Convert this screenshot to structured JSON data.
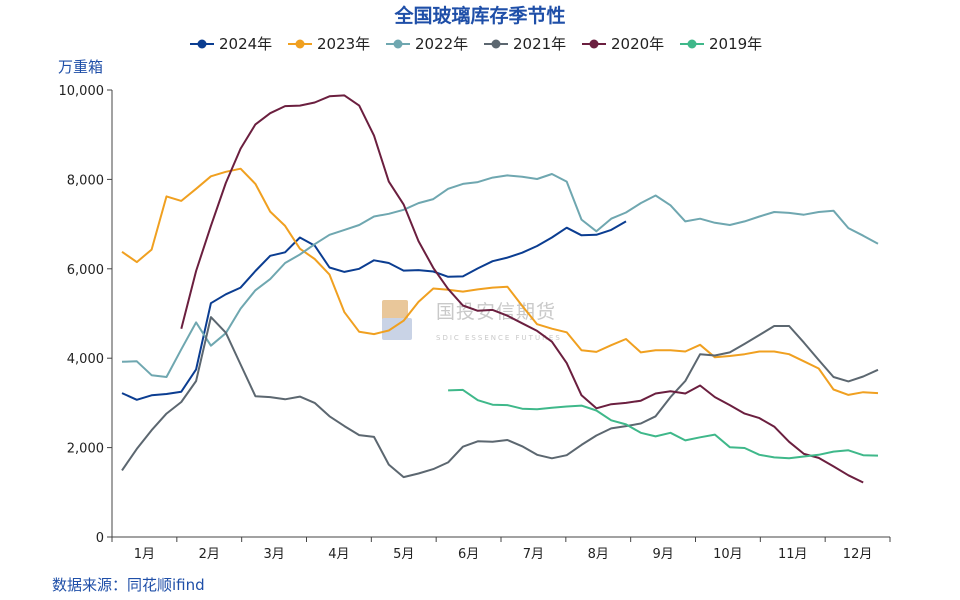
{
  "colors": {
    "title": "#1f4fa8",
    "axis": "#444444",
    "unit": "#1f4fa8",
    "source": "#1f4fa8",
    "watermark": "#c9c9c9",
    "watermark_logo_a": "#e9c79a",
    "watermark_logo_b": "#c9d3e6"
  },
  "watermark": {
    "text": "国投安信期货",
    "sub": "SDIC ESSENCE FUTURES"
  },
  "source_text": "数据来源：同花顺ifind",
  "chart_data": {
    "type": "line",
    "title": "全国玻璃库存季节性",
    "ylabel": "万重箱",
    "xlabel": "",
    "ylim": [
      0,
      10000
    ],
    "yticks": [
      0,
      2000,
      4000,
      6000,
      8000,
      10000
    ],
    "ytick_labels": [
      "0",
      "2,000",
      "4,000",
      "6,000",
      "8,000",
      "10,000"
    ],
    "xlim": [
      0,
      52
    ],
    "months": [
      "1月",
      "2月",
      "3月",
      "4月",
      "5月",
      "6月",
      "7月",
      "8月",
      "9月",
      "10月",
      "11月",
      "12月"
    ],
    "legend_position": "top-center",
    "series": [
      {
        "name": "2024年",
        "color": "#0b3d91",
        "start": 0,
        "values": [
          3220,
          3070,
          3170,
          3200,
          3250,
          3750,
          5230,
          5430,
          5580,
          5950,
          6290,
          6370,
          6700,
          6520,
          6030,
          5930,
          6000,
          6190,
          6130,
          5960,
          5970,
          5940,
          5820,
          5830,
          6010,
          6170,
          6250,
          6360,
          6510,
          6700,
          6920,
          6750,
          6760,
          6870,
          7060
        ]
      },
      {
        "name": "2023年",
        "color": "#f0a020",
        "start": 0,
        "values": [
          6380,
          6150,
          6430,
          7620,
          7520,
          7790,
          8070,
          8170,
          8240,
          7900,
          7280,
          6960,
          6450,
          6220,
          5870,
          5030,
          4590,
          4540,
          4620,
          4840,
          5260,
          5560,
          5530,
          5490,
          5540,
          5580,
          5600,
          5170,
          4760,
          4660,
          4580,
          4180,
          4140,
          4290,
          4430,
          4130,
          4180,
          4180,
          4150,
          4300,
          4020,
          4050,
          4090,
          4150,
          4150,
          4090,
          3930,
          3770,
          3300,
          3180,
          3240,
          3220
        ]
      },
      {
        "name": "2022年",
        "color": "#6fa7b0",
        "start": 0,
        "values": [
          3920,
          3930,
          3620,
          3580,
          4200,
          4800,
          4280,
          4560,
          5110,
          5520,
          5770,
          6130,
          6320,
          6550,
          6760,
          6870,
          6980,
          7170,
          7230,
          7320,
          7470,
          7560,
          7790,
          7900,
          7940,
          8040,
          8090,
          8060,
          8010,
          8120,
          7950,
          7100,
          6840,
          7120,
          7260,
          7470,
          7640,
          7420,
          7060,
          7120,
          7030,
          6980,
          7060,
          7170,
          7270,
          7250,
          7210,
          7270,
          7300,
          6910,
          6740,
          6560
        ]
      },
      {
        "name": "2021年",
        "color": "#5c6770",
        "start": 0,
        "values": [
          1490,
          1970,
          2390,
          2760,
          3020,
          3490,
          4920,
          4570,
          3860,
          3150,
          3130,
          3080,
          3140,
          3000,
          2700,
          2480,
          2280,
          2240,
          1620,
          1340,
          1420,
          1520,
          1670,
          2020,
          2140,
          2130,
          2170,
          2030,
          1840,
          1760,
          1830,
          2060,
          2270,
          2430,
          2480,
          2540,
          2700,
          3130,
          3490,
          4090,
          4060,
          4130,
          4320,
          4520,
          4720,
          4720,
          4350,
          3960,
          3580,
          3480,
          3590,
          3740
        ]
      },
      {
        "name": "2020年",
        "color": "#6b1f3f",
        "start": 4,
        "values": [
          4660,
          5950,
          6960,
          7920,
          8690,
          9230,
          9480,
          9640,
          9650,
          9720,
          9860,
          9880,
          9650,
          8980,
          7950,
          7440,
          6620,
          6020,
          5550,
          5180,
          5060,
          5080,
          4950,
          4780,
          4610,
          4370,
          3890,
          3170,
          2880,
          2970,
          3000,
          3050,
          3210,
          3260,
          3210,
          3390,
          3130,
          2950,
          2760,
          2660,
          2470,
          2130,
          1860,
          1770,
          1580,
          1380,
          1220
        ]
      },
      {
        "name": "2019年",
        "color": "#3fb88a",
        "start": 22,
        "values": [
          3280,
          3290,
          3060,
          2960,
          2950,
          2870,
          2860,
          2890,
          2920,
          2940,
          2830,
          2610,
          2520,
          2330,
          2250,
          2330,
          2160,
          2230,
          2290,
          2010,
          1990,
          1840,
          1780,
          1760,
          1800,
          1840,
          1910,
          1940,
          1830,
          1820
        ]
      }
    ]
  }
}
